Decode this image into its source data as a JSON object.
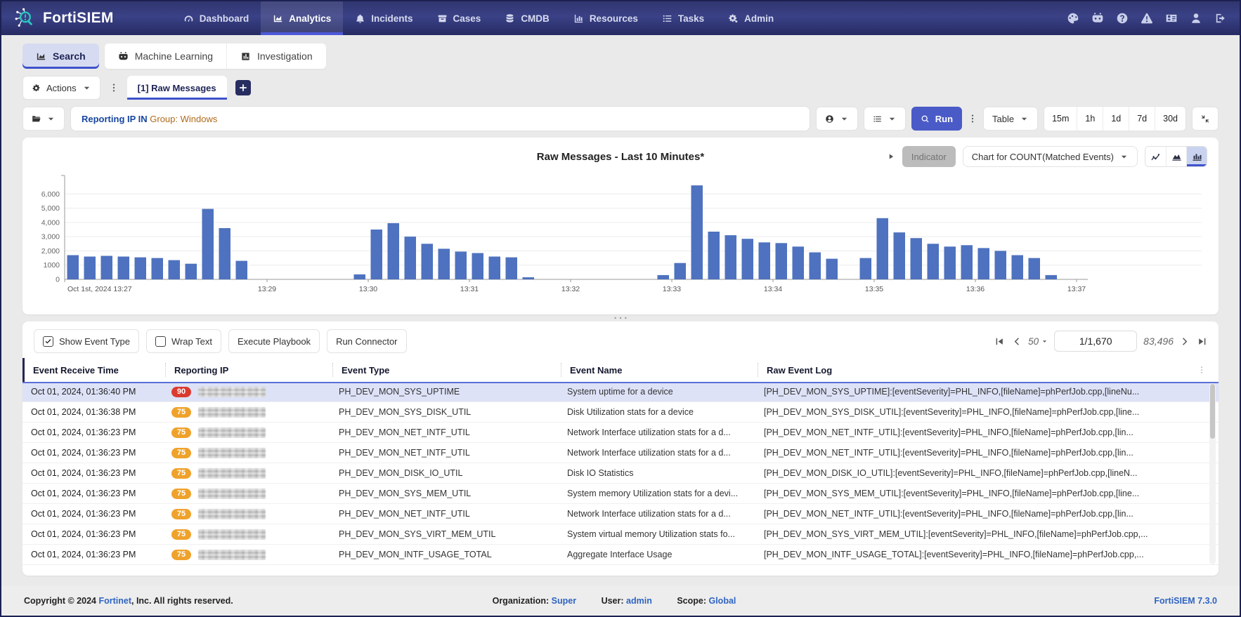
{
  "navbar": {
    "brand": "FortiSIEM",
    "items": [
      {
        "label": "Dashboard",
        "icon": "gauge",
        "active": false
      },
      {
        "label": "Analytics",
        "icon": "chart-area",
        "active": true
      },
      {
        "label": "Incidents",
        "icon": "bell",
        "active": false
      },
      {
        "label": "Cases",
        "icon": "archive",
        "active": false
      },
      {
        "label": "CMDB",
        "icon": "database",
        "active": false
      },
      {
        "label": "Resources",
        "icon": "bar-chart",
        "active": false
      },
      {
        "label": "Tasks",
        "icon": "task-list",
        "active": false
      },
      {
        "label": "Admin",
        "icon": "gears",
        "active": false
      }
    ],
    "right_icons": [
      "palette",
      "bot",
      "help",
      "warning",
      "id-card",
      "user",
      "sign-out"
    ]
  },
  "module_tabs": [
    {
      "label": "Search",
      "icon": "chart-area",
      "active": true
    },
    {
      "label": "Machine Learning",
      "icon": "bot",
      "active": false
    },
    {
      "label": "Investigation",
      "icon": "chart-box",
      "active": false
    }
  ],
  "actions_bar": {
    "actions_label": "Actions",
    "search_tab_label": "[1] Raw Messages"
  },
  "query": {
    "field": "Reporting IP IN ",
    "value": "Group: Windows"
  },
  "toolbar": {
    "run_label": "Run",
    "view_label": "Table",
    "time_ranges": [
      "15m",
      "1h",
      "1d",
      "7d",
      "30d"
    ]
  },
  "chart_panel": {
    "title": "Raw Messages - Last 10 Minutes*",
    "indicator_label": "Indicator",
    "series_selector": "Chart for COUNT(Matched Events)"
  },
  "chart_data": {
    "type": "bar",
    "title": "Raw Messages - Last 10 Minutes*",
    "bar_color": "#4e72bf",
    "interval_seconds": 10,
    "time_window": "13:27 - 13:37, Oct 1st 2024",
    "ylim": [
      0,
      7000
    ],
    "ytick_labels": [
      "0",
      "1000",
      "2,000",
      "3,000",
      "4,000",
      "5,000",
      "6,000"
    ],
    "values": [
      1700,
      1600,
      1650,
      1600,
      1550,
      1500,
      1350,
      1100,
      4950,
      3600,
      1300,
      0,
      0,
      0,
      0,
      0,
      0,
      350,
      3500,
      3950,
      3000,
      2500,
      2150,
      1950,
      1850,
      1600,
      1550,
      150,
      0,
      0,
      0,
      0,
      0,
      0,
      0,
      300,
      1150,
      6600,
      3350,
      3100,
      2850,
      2600,
      2550,
      2300,
      1900,
      1450,
      0,
      1500,
      4300,
      3300,
      2900,
      2500,
      2300,
      2400,
      2200,
      2000,
      1700,
      1500,
      300,
      0
    ],
    "xticks": [
      {
        "index": 0,
        "label": "Oct 1st, 2024 13:27"
      },
      {
        "index": 12,
        "label": "13:29"
      },
      {
        "index": 18,
        "label": "13:30"
      },
      {
        "index": 24,
        "label": "13:31"
      },
      {
        "index": 30,
        "label": "13:32"
      },
      {
        "index": 36,
        "label": "13:33"
      },
      {
        "index": 42,
        "label": "13:34"
      },
      {
        "index": 48,
        "label": "13:35"
      },
      {
        "index": 54,
        "label": "13:36"
      },
      {
        "index": 60,
        "label": "13:37"
      }
    ]
  },
  "table": {
    "toggles": [
      {
        "label": "Show Event Type",
        "checked": true
      },
      {
        "label": "Wrap Text",
        "checked": false
      }
    ],
    "buttons": [
      "Execute Playbook",
      "Run Connector"
    ],
    "pagination": {
      "page_size": "50",
      "page_indicator": "1/1,670",
      "total_count": "83,496"
    },
    "columns": [
      "Event Receive Time",
      "Reporting IP",
      "Event Type",
      "Event Name",
      "Raw Event Log"
    ],
    "rows": [
      {
        "time": "Oct 01, 2024, 01:36:40 PM",
        "severity": "90",
        "ip_redacted": true,
        "event_type": "PH_DEV_MON_SYS_UPTIME",
        "event_name": "System uptime for a device",
        "raw_log": "[PH_DEV_MON_SYS_UPTIME]:[eventSeverity]=PHL_INFO,[fileName]=phPerfJob.cpp,[lineNu...",
        "selected": true
      },
      {
        "time": "Oct 01, 2024, 01:36:38 PM",
        "severity": "75",
        "ip_redacted": true,
        "event_type": "PH_DEV_MON_SYS_DISK_UTIL",
        "event_name": "Disk Utilization stats for a device",
        "raw_log": "[PH_DEV_MON_SYS_DISK_UTIL]:[eventSeverity]=PHL_INFO,[fileName]=phPerfJob.cpp,[line...",
        "selected": false
      },
      {
        "time": "Oct 01, 2024, 01:36:23 PM",
        "severity": "75",
        "ip_redacted": true,
        "event_type": "PH_DEV_MON_NET_INTF_UTIL",
        "event_name": "Network Interface utilization stats for a d...",
        "raw_log": "[PH_DEV_MON_NET_INTF_UTIL]:[eventSeverity]=PHL_INFO,[fileName]=phPerfJob.cpp,[lin...",
        "selected": false
      },
      {
        "time": "Oct 01, 2024, 01:36:23 PM",
        "severity": "75",
        "ip_redacted": true,
        "event_type": "PH_DEV_MON_NET_INTF_UTIL",
        "event_name": "Network Interface utilization stats for a d...",
        "raw_log": "[PH_DEV_MON_NET_INTF_UTIL]:[eventSeverity]=PHL_INFO,[fileName]=phPerfJob.cpp,[lin...",
        "selected": false
      },
      {
        "time": "Oct 01, 2024, 01:36:23 PM",
        "severity": "75",
        "ip_redacted": true,
        "event_type": "PH_DEV_MON_DISK_IO_UTIL",
        "event_name": "Disk IO Statistics",
        "raw_log": "[PH_DEV_MON_DISK_IO_UTIL]:[eventSeverity]=PHL_INFO,[fileName]=phPerfJob.cpp,[lineN...",
        "selected": false
      },
      {
        "time": "Oct 01, 2024, 01:36:23 PM",
        "severity": "75",
        "ip_redacted": true,
        "event_type": "PH_DEV_MON_SYS_MEM_UTIL",
        "event_name": "System memory Utilization stats for a devi...",
        "raw_log": "[PH_DEV_MON_SYS_MEM_UTIL]:[eventSeverity]=PHL_INFO,[fileName]=phPerfJob.cpp,[line...",
        "selected": false
      },
      {
        "time": "Oct 01, 2024, 01:36:23 PM",
        "severity": "75",
        "ip_redacted": true,
        "event_type": "PH_DEV_MON_NET_INTF_UTIL",
        "event_name": "Network Interface utilization stats for a d...",
        "raw_log": "[PH_DEV_MON_NET_INTF_UTIL]:[eventSeverity]=PHL_INFO,[fileName]=phPerfJob.cpp,[lin...",
        "selected": false
      },
      {
        "time": "Oct 01, 2024, 01:36:23 PM",
        "severity": "75",
        "ip_redacted": true,
        "event_type": "PH_DEV_MON_SYS_VIRT_MEM_UTIL",
        "event_name": "System virtual memory Utilization stats fo...",
        "raw_log": "[PH_DEV_MON_SYS_VIRT_MEM_UTIL]:[eventSeverity]=PHL_INFO,[fileName]=phPerfJob.cpp,...",
        "selected": false
      },
      {
        "time": "Oct 01, 2024, 01:36:23 PM",
        "severity": "75",
        "ip_redacted": true,
        "event_type": "PH_DEV_MON_INTF_USAGE_TOTAL",
        "event_name": "Aggregate Interface Usage",
        "raw_log": "[PH_DEV_MON_INTF_USAGE_TOTAL]:[eventSeverity]=PHL_INFO,[fileName]=phPerfJob.cpp,...",
        "selected": false
      }
    ]
  },
  "footer": {
    "copyright_prefix": "Copyright © 2024 ",
    "fortinet_link": "Fortinet",
    "copyright_suffix": ", Inc. All rights reserved.",
    "org_label": "Organization:",
    "org_value": "Super",
    "user_label": "User:",
    "user_value": "admin",
    "scope_label": "Scope:",
    "scope_value": "Global",
    "version": "FortiSIEM 7.3.0"
  },
  "colors": {
    "accent": "#3d52cc",
    "run_button": "#4a5bc8",
    "severity_90": "#da3b2e",
    "severity_75": "#efa22b",
    "bar": "#4e72bf",
    "link": "#2f64c1",
    "navbar": "#30366f"
  }
}
